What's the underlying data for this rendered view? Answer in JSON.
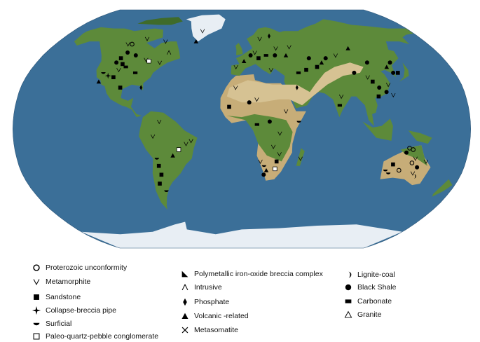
{
  "colors": {
    "ocean": "#3b6f98",
    "ocean_light": "#4f83ad",
    "land_green": "#5d8a3a",
    "land_dark": "#3f6b2a",
    "desert": "#c7ad78",
    "desert_light": "#d6c293",
    "ice": "#e8eef4",
    "marker": "#000000"
  },
  "map": {
    "projection": "robinson-world",
    "deposit_points": [
      {
        "type": "black-shale",
        "lon": -105,
        "lat": 52
      },
      {
        "type": "metamorphite",
        "lon": -110,
        "lat": 58
      },
      {
        "type": "proterozoic-unconformity",
        "lon": -106,
        "lat": 58
      },
      {
        "type": "metamorphite",
        "lon": -95,
        "lat": 62
      },
      {
        "type": "metamorphite",
        "lon": -75,
        "lat": 60
      },
      {
        "type": "sandstone",
        "lon": -108,
        "lat": 48
      },
      {
        "type": "black-shale",
        "lon": -110,
        "lat": 45
      },
      {
        "type": "sandstone",
        "lon": -104,
        "lat": 44
      },
      {
        "type": "collapse-breccia-pipe",
        "lon": -112,
        "lat": 36
      },
      {
        "type": "sandstone",
        "lon": -107,
        "lat": 35
      },
      {
        "type": "carbonate",
        "lon": -100,
        "lat": 42
      },
      {
        "type": "surficial",
        "lon": -117,
        "lat": 38
      },
      {
        "type": "sandstone",
        "lon": -99,
        "lat": 28
      },
      {
        "type": "phosphate",
        "lon": -82,
        "lat": 28
      },
      {
        "type": "volcanic-related",
        "lon": -118,
        "lat": 32
      },
      {
        "type": "metamorphite",
        "lon": -85,
        "lat": 47
      },
      {
        "type": "paleo-quartz-pebble-conglomerate",
        "lon": -82,
        "lat": 46
      },
      {
        "type": "metamorphite",
        "lon": -72,
        "lat": 45
      },
      {
        "type": "intrusive",
        "lon": -67,
        "lat": 52
      },
      {
        "type": "carbonate",
        "lon": -90,
        "lat": 38
      },
      {
        "type": "metamorphite",
        "lon": -42,
        "lat": 68
      },
      {
        "type": "volcanic-related",
        "lon": -45,
        "lat": 60
      },
      {
        "type": "metamorphite",
        "lon": -105,
        "lat": 40
      },
      {
        "type": "black-shale",
        "lon": -96,
        "lat": 50
      },
      {
        "type": "metamorphite",
        "lon": -65,
        "lat": 5
      },
      {
        "type": "metamorphite",
        "lon": -70,
        "lat": -5
      },
      {
        "type": "surficial",
        "lon": -68,
        "lat": -20
      },
      {
        "type": "sandstone",
        "lon": -67,
        "lat": -25
      },
      {
        "type": "sandstone",
        "lon": -66,
        "lat": -31
      },
      {
        "type": "sandstone",
        "lon": -69,
        "lat": -37
      },
      {
        "type": "surficial",
        "lon": -65,
        "lat": -42
      },
      {
        "type": "paleo-quartz-pebble-conglomerate",
        "lon": -50,
        "lat": -14
      },
      {
        "type": "metamorphite",
        "lon": -44,
        "lat": -10
      },
      {
        "type": "metamorphite",
        "lon": -40,
        "lat": -8
      },
      {
        "type": "volcanic-related",
        "lon": -55,
        "lat": -18
      },
      {
        "type": "metamorphite",
        "lon": -5,
        "lat": 42
      },
      {
        "type": "volcanic-related",
        "lon": 2,
        "lat": 46
      },
      {
        "type": "black-shale",
        "lon": 8,
        "lat": 50
      },
      {
        "type": "metamorphite",
        "lon": 12,
        "lat": 52
      },
      {
        "type": "sandstone",
        "lon": 15,
        "lat": 48
      },
      {
        "type": "carbonate",
        "lon": 22,
        "lat": 50
      },
      {
        "type": "metamorphite",
        "lon": 18,
        "lat": 62
      },
      {
        "type": "phosphate",
        "lon": 28,
        "lat": 64
      },
      {
        "type": "metamorphite",
        "lon": 32,
        "lat": 55
      },
      {
        "type": "volcanic-related",
        "lon": 40,
        "lat": 50
      },
      {
        "type": "black-shale",
        "lon": 30,
        "lat": 50
      },
      {
        "type": "metamorphite",
        "lon": 45,
        "lat": 56
      },
      {
        "type": "black-shale",
        "lon": 60,
        "lat": 48
      },
      {
        "type": "sandstone",
        "lon": 65,
        "lat": 42
      },
      {
        "type": "volcanic-related",
        "lon": 70,
        "lat": 45
      },
      {
        "type": "black-shale",
        "lon": 75,
        "lat": 48
      },
      {
        "type": "metamorphite",
        "lon": 85,
        "lat": 50
      },
      {
        "type": "volcanic-related",
        "lon": 100,
        "lat": 55
      },
      {
        "type": "sandstone",
        "lon": 55,
        "lat": 40
      },
      {
        "type": "carbonate",
        "lon": 48,
        "lat": 38
      },
      {
        "type": "phosphate",
        "lon": 45,
        "lat": 28
      },
      {
        "type": "metamorphite",
        "lon": 25,
        "lat": 40
      },
      {
        "type": "metamorphite",
        "lon": -5,
        "lat": 28
      },
      {
        "type": "black-shale",
        "lon": 6,
        "lat": 18
      },
      {
        "type": "metamorphite",
        "lon": 12,
        "lat": 20
      },
      {
        "type": "sandstone",
        "lon": -10,
        "lat": 15
      },
      {
        "type": "carbonate",
        "lon": 12,
        "lat": 3
      },
      {
        "type": "black-shale",
        "lon": 22,
        "lat": 5
      },
      {
        "type": "metamorphite",
        "lon": 35,
        "lat": 12
      },
      {
        "type": "surficial",
        "lon": 45,
        "lat": 5
      },
      {
        "type": "metamorphite",
        "lon": 30,
        "lat": -3
      },
      {
        "type": "metamorphite",
        "lon": 25,
        "lat": -12
      },
      {
        "type": "metamorphite",
        "lon": 30,
        "lat": -17
      },
      {
        "type": "sandstone",
        "lon": 28,
        "lat": -22
      },
      {
        "type": "metamorphite",
        "lon": 15,
        "lat": -22
      },
      {
        "type": "surficial",
        "lon": 18,
        "lat": -25
      },
      {
        "type": "paleo-quartz-pebble-conglomerate",
        "lon": 27,
        "lat": -27
      },
      {
        "type": "volcanic-related",
        "lon": 20,
        "lat": -28
      },
      {
        "type": "black-shale",
        "lon": 18,
        "lat": -31
      },
      {
        "type": "metamorphite",
        "lon": 47,
        "lat": -20
      },
      {
        "type": "black-shale",
        "lon": 110,
        "lat": 45
      },
      {
        "type": "metamorphite",
        "lon": 105,
        "lat": 35
      },
      {
        "type": "black-shale",
        "lon": 112,
        "lat": 28
      },
      {
        "type": "black-shale",
        "lon": 117,
        "lat": 25
      },
      {
        "type": "sandstone",
        "lon": 110,
        "lat": 22
      },
      {
        "type": "metamorphite",
        "lon": 120,
        "lat": 30
      },
      {
        "type": "volcanic-related",
        "lon": 125,
        "lat": 42
      },
      {
        "type": "black-shale",
        "lon": 128,
        "lat": 38
      },
      {
        "type": "metamorphite",
        "lon": 122,
        "lat": 23
      },
      {
        "type": "sandstone",
        "lon": 108,
        "lat": 32
      },
      {
        "type": "black-shale",
        "lon": 95,
        "lat": 38
      },
      {
        "type": "metamorphite",
        "lon": 80,
        "lat": 22
      },
      {
        "type": "carbonate",
        "lon": 78,
        "lat": 16
      },
      {
        "type": "black-shale",
        "lon": 130,
        "lat": 45
      },
      {
        "type": "sandstone",
        "lon": 132,
        "lat": 38
      },
      {
        "type": "proterozoic-unconformity",
        "lon": 133,
        "lat": -13
      },
      {
        "type": "proterozoic-unconformity",
        "lon": 136,
        "lat": -14
      },
      {
        "type": "black-shale",
        "lon": 131,
        "lat": -16
      },
      {
        "type": "metamorphite",
        "lon": 139,
        "lat": -20
      },
      {
        "type": "proterozoic-unconformity",
        "lon": 137,
        "lat": -23
      },
      {
        "type": "sandstone",
        "lon": 122,
        "lat": -24
      },
      {
        "type": "surficial",
        "lon": 117,
        "lat": -28
      },
      {
        "type": "surficial",
        "lon": 120,
        "lat": -30
      },
      {
        "type": "metamorphite",
        "lon": 140,
        "lat": -30
      },
      {
        "type": "black-shale",
        "lon": 142,
        "lat": -26
      },
      {
        "type": "proterozoic-unconformity",
        "lon": 128,
        "lat": -28
      },
      {
        "type": "metamorphite",
        "lon": 148,
        "lat": -22
      },
      {
        "type": "lignite-coal",
        "lon": 142,
        "lat": -32
      }
    ]
  },
  "legend": {
    "columns": [
      [
        {
          "symbol": "proterozoic-unconformity",
          "label": "Proterozoic unconformity"
        },
        {
          "symbol": "metamorphite",
          "label": "Metamorphite"
        },
        {
          "symbol": "sandstone",
          "label": "Sandstone"
        },
        {
          "symbol": "collapse-breccia-pipe",
          "label": "Collapse-breccia pipe"
        },
        {
          "symbol": "surficial",
          "label": "Surficial"
        },
        {
          "symbol": "paleo-quartz-pebble-conglomerate",
          "label": "Paleo-quartz-pebble conglomerate"
        }
      ],
      [
        {
          "symbol": "polymetallic-iron-oxide-breccia-complex",
          "label": "Polymetallic iron-oxide breccia complex"
        },
        {
          "symbol": "intrusive",
          "label": "Intrusive"
        },
        {
          "symbol": "phosphate",
          "label": "Phosphate"
        },
        {
          "symbol": "volcanic-related",
          "label": "Volcanic -related"
        },
        {
          "symbol": "metasomatite",
          "label": "Metasomatite"
        }
      ],
      [
        {
          "symbol": "lignite-coal",
          "label": "Lignite-coal"
        },
        {
          "symbol": "black-shale",
          "label": "Black Shale"
        },
        {
          "symbol": "carbonate",
          "label": "Carbonate"
        },
        {
          "symbol": "granite",
          "label": "Granite"
        }
      ]
    ]
  }
}
